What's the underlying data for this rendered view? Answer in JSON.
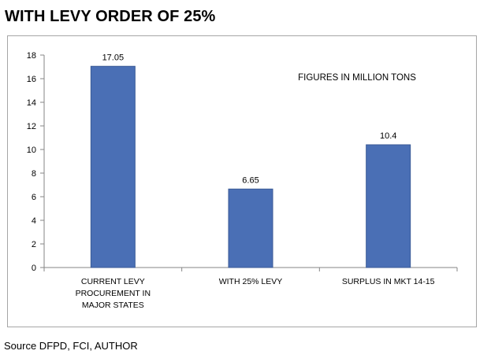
{
  "page": {
    "title": "WITH LEVY ORDER OF 25%",
    "source": "Source DFPD, FCI, AUTHOR"
  },
  "chart_data": {
    "type": "bar",
    "categories": [
      [
        "CURRENT LEVY",
        "PROCUREMENT IN",
        "MAJOR STATES"
      ],
      [
        "WITH 25% LEVY"
      ],
      [
        "SURPLUS IN MKT 14-15"
      ]
    ],
    "values": [
      17.05,
      6.65,
      10.4
    ],
    "data_labels": [
      "17.05",
      "6.65",
      "10.4"
    ],
    "annotation": "FIGURES IN MILLION TONS",
    "ylim": [
      0,
      18
    ],
    "yticks": [
      0,
      2,
      4,
      6,
      8,
      10,
      12,
      14,
      16,
      18
    ],
    "grid": false,
    "legend": "none",
    "bar_color": "#4a6fb5",
    "bar_edge_color": "#3a5a96"
  }
}
